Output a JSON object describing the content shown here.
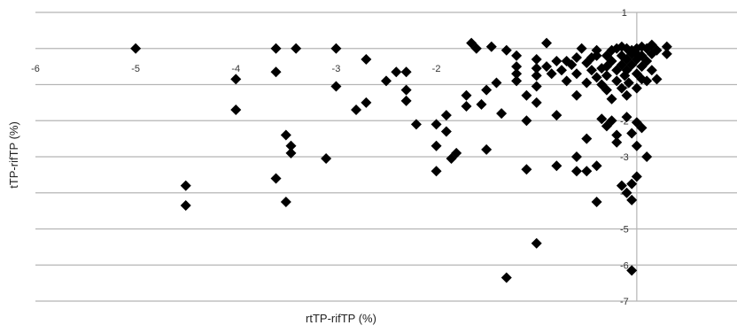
{
  "chart_data": {
    "type": "scatter",
    "title": "",
    "xlabel": "rtTP-rifTP (%)",
    "ylabel": "tTP-rifTP (%)",
    "xlim": [
      -6,
      1
    ],
    "ylim": [
      -7,
      1
    ],
    "x_ticks": [
      "-6",
      "-5",
      "-4",
      "-3",
      "-2"
    ],
    "y_ticks": [
      "1",
      "-1",
      "-2",
      "-3",
      "-4",
      "-5",
      "-6",
      "-7"
    ],
    "grid": true,
    "marker": "diamond",
    "marker_color": "#000000",
    "grid_color": "#b5b5b5",
    "points": [
      {
        "x": -5.0,
        "y": 0.0
      },
      {
        "x": -4.5,
        "y": -3.8
      },
      {
        "x": -4.5,
        "y": -4.35
      },
      {
        "x": -4.0,
        "y": -0.85
      },
      {
        "x": -4.0,
        "y": -1.7
      },
      {
        "x": -3.6,
        "y": 0.0
      },
      {
        "x": -3.6,
        "y": -0.65
      },
      {
        "x": -3.6,
        "y": -3.6
      },
      {
        "x": -3.5,
        "y": -4.25
      },
      {
        "x": -3.5,
        "y": -2.4
      },
      {
        "x": -3.45,
        "y": -2.7
      },
      {
        "x": -3.45,
        "y": -2.9
      },
      {
        "x": -3.4,
        "y": 0.0
      },
      {
        "x": -3.1,
        "y": -3.05
      },
      {
        "x": -3.0,
        "y": 0.0
      },
      {
        "x": -3.0,
        "y": -1.05
      },
      {
        "x": -2.8,
        "y": -1.7
      },
      {
        "x": -2.7,
        "y": -1.5
      },
      {
        "x": -2.7,
        "y": -0.3
      },
      {
        "x": -2.5,
        "y": -0.9
      },
      {
        "x": -2.4,
        "y": -0.65
      },
      {
        "x": -2.3,
        "y": -0.65
      },
      {
        "x": -2.3,
        "y": -1.15
      },
      {
        "x": -2.3,
        "y": -1.45
      },
      {
        "x": -2.2,
        "y": -2.1
      },
      {
        "x": -2.0,
        "y": -2.1
      },
      {
        "x": -2.0,
        "y": -2.7
      },
      {
        "x": -2.0,
        "y": -3.4
      },
      {
        "x": -1.9,
        "y": -1.85
      },
      {
        "x": -1.9,
        "y": -2.3
      },
      {
        "x": -1.85,
        "y": -3.05
      },
      {
        "x": -1.8,
        "y": -2.9
      },
      {
        "x": -1.7,
        "y": -1.3
      },
      {
        "x": -1.7,
        "y": -1.6
      },
      {
        "x": -1.65,
        "y": 0.15
      },
      {
        "x": -1.6,
        "y": 0.0
      },
      {
        "x": -1.55,
        "y": -1.55
      },
      {
        "x": -1.5,
        "y": -2.8
      },
      {
        "x": -1.5,
        "y": -1.15
      },
      {
        "x": -1.45,
        "y": 0.05
      },
      {
        "x": -1.4,
        "y": -0.95
      },
      {
        "x": -1.35,
        "y": -1.8
      },
      {
        "x": -1.3,
        "y": -0.05
      },
      {
        "x": -1.3,
        "y": -6.35
      },
      {
        "x": -1.2,
        "y": -0.2
      },
      {
        "x": -1.2,
        "y": -0.5
      },
      {
        "x": -1.2,
        "y": -0.7
      },
      {
        "x": -1.2,
        "y": -0.9
      },
      {
        "x": -1.1,
        "y": -1.3
      },
      {
        "x": -1.1,
        "y": -2.0
      },
      {
        "x": -1.1,
        "y": -3.35
      },
      {
        "x": -1.0,
        "y": -0.3
      },
      {
        "x": -1.0,
        "y": -0.55
      },
      {
        "x": -1.0,
        "y": -0.75
      },
      {
        "x": -1.0,
        "y": -1.05
      },
      {
        "x": -1.0,
        "y": -1.5
      },
      {
        "x": -1.0,
        "y": -5.4
      },
      {
        "x": -0.9,
        "y": 0.15
      },
      {
        "x": -0.9,
        "y": -0.5
      },
      {
        "x": -0.85,
        "y": -0.7
      },
      {
        "x": -0.8,
        "y": -0.35
      },
      {
        "x": -0.8,
        "y": -1.85
      },
      {
        "x": -0.8,
        "y": -3.25
      },
      {
        "x": -0.75,
        "y": -0.6
      },
      {
        "x": -0.7,
        "y": -0.35
      },
      {
        "x": -0.7,
        "y": -0.9
      },
      {
        "x": -0.65,
        "y": -0.45
      },
      {
        "x": -0.6,
        "y": -0.7
      },
      {
        "x": -0.6,
        "y": -0.25
      },
      {
        "x": -0.6,
        "y": -1.3
      },
      {
        "x": -0.6,
        "y": -3.0
      },
      {
        "x": -0.6,
        "y": -3.4
      },
      {
        "x": -0.55,
        "y": 0.0
      },
      {
        "x": -0.5,
        "y": -0.4
      },
      {
        "x": -0.5,
        "y": -0.95
      },
      {
        "x": -0.5,
        "y": -2.5
      },
      {
        "x": -0.5,
        "y": -3.4
      },
      {
        "x": -0.45,
        "y": -0.6
      },
      {
        "x": -0.4,
        "y": -0.2
      },
      {
        "x": -0.4,
        "y": -0.8
      },
      {
        "x": -0.4,
        "y": -3.25
      },
      {
        "x": -0.4,
        "y": -4.25
      },
      {
        "x": -0.35,
        "y": -1.0
      },
      {
        "x": -0.35,
        "y": -1.95
      },
      {
        "x": -0.3,
        "y": -0.2
      },
      {
        "x": -0.3,
        "y": -0.5
      },
      {
        "x": -0.3,
        "y": -0.75
      },
      {
        "x": -0.3,
        "y": -1.15
      },
      {
        "x": -0.3,
        "y": -2.15
      },
      {
        "x": -0.25,
        "y": -0.35
      },
      {
        "x": -0.25,
        "y": -1.4
      },
      {
        "x": -0.25,
        "y": -2.0
      },
      {
        "x": -0.2,
        "y": 0.0
      },
      {
        "x": -0.2,
        "y": -0.6
      },
      {
        "x": -0.2,
        "y": -0.9
      },
      {
        "x": -0.2,
        "y": -2.4
      },
      {
        "x": -0.2,
        "y": -2.6
      },
      {
        "x": -0.15,
        "y": -0.2
      },
      {
        "x": -0.15,
        "y": -0.45
      },
      {
        "x": -0.15,
        "y": -1.1
      },
      {
        "x": -0.15,
        "y": -3.8
      },
      {
        "x": -0.12,
        "y": -0.75
      },
      {
        "x": -0.1,
        "y": 0.0
      },
      {
        "x": -0.1,
        "y": -0.3
      },
      {
        "x": -0.1,
        "y": -0.6
      },
      {
        "x": -0.1,
        "y": -1.3
      },
      {
        "x": -0.1,
        "y": -1.9
      },
      {
        "x": -0.1,
        "y": -4.0
      },
      {
        "x": -0.08,
        "y": -0.95
      },
      {
        "x": -0.05,
        "y": -0.15
      },
      {
        "x": -0.05,
        "y": -0.45
      },
      {
        "x": -0.05,
        "y": -2.35
      },
      {
        "x": -0.05,
        "y": -3.75
      },
      {
        "x": -0.05,
        "y": -4.2
      },
      {
        "x": -0.05,
        "y": -6.15
      },
      {
        "x": 0.0,
        "y": 0.0
      },
      {
        "x": 0.0,
        "y": -0.3
      },
      {
        "x": 0.0,
        "y": -0.7
      },
      {
        "x": 0.0,
        "y": -1.1
      },
      {
        "x": 0.0,
        "y": -2.05
      },
      {
        "x": 0.0,
        "y": -2.7
      },
      {
        "x": 0.0,
        "y": -3.55
      },
      {
        "x": 0.05,
        "y": 0.05
      },
      {
        "x": 0.05,
        "y": -0.2
      },
      {
        "x": 0.05,
        "y": -0.5
      },
      {
        "x": 0.05,
        "y": -0.85
      },
      {
        "x": 0.05,
        "y": -2.2
      },
      {
        "x": 0.1,
        "y": 0.0
      },
      {
        "x": 0.1,
        "y": -0.35
      },
      {
        "x": 0.1,
        "y": -0.9
      },
      {
        "x": 0.1,
        "y": -3.0
      },
      {
        "x": 0.15,
        "y": 0.1
      },
      {
        "x": 0.15,
        "y": -0.15
      },
      {
        "x": 0.15,
        "y": -0.6
      },
      {
        "x": 0.2,
        "y": -0.05
      },
      {
        "x": 0.2,
        "y": -0.85
      },
      {
        "x": 0.3,
        "y": -0.15
      },
      {
        "x": 0.3,
        "y": 0.05
      },
      {
        "x": -0.4,
        "y": -0.05
      },
      {
        "x": -0.45,
        "y": -0.25
      },
      {
        "x": -0.35,
        "y": -0.55
      },
      {
        "x": -0.25,
        "y": -0.05
      },
      {
        "x": -0.15,
        "y": 0.05
      },
      {
        "x": -0.05,
        "y": -0.05
      },
      {
        "x": 0.0,
        "y": -0.15
      }
    ]
  }
}
